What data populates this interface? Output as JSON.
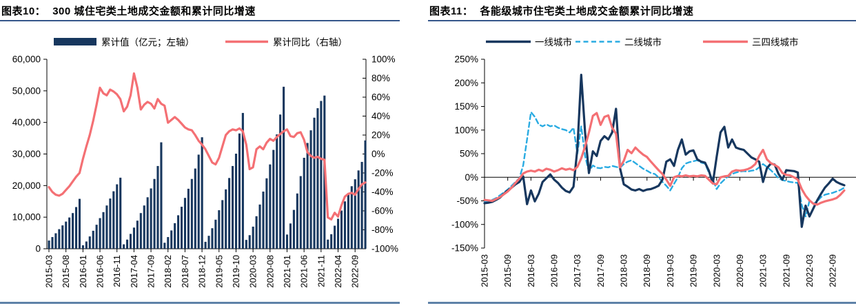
{
  "colors": {
    "navy": "#17375E",
    "salmon": "#F47074",
    "cyan": "#29ABE2",
    "axis": "#000000",
    "title_underline": "#35568A",
    "bottom_rule": "#5E82A8"
  },
  "figures": [
    {
      "id": "fig10",
      "caption_label": "图表10：",
      "caption_title": "300 城住宅类土地成交金额和累计同比增速",
      "legend": [
        {
          "name": "累计值（亿元；左轴）",
          "type": "bar",
          "color_key": "navy"
        },
        {
          "name": "累计同比（右轴）",
          "type": "line",
          "color_key": "salmon"
        }
      ],
      "chart_data": {
        "type": "bar+line",
        "x_freq": "monthly",
        "x_start": "2015-03",
        "x_end": "2022-12",
        "x_tick_labels": [
          "2015-03",
          "2015-08",
          "2016-01",
          "2016-06",
          "2016-11",
          "2017-04",
          "2017-09",
          "2018-02",
          "2018-07",
          "2018-12",
          "2019-05",
          "2019-10",
          "2020-03",
          "2020-08",
          "2021-01",
          "2021-06",
          "2021-11",
          "2022-04",
          "2022-09"
        ],
        "x_tick_every_n_months": 5,
        "left_axis": {
          "min": 0,
          "max": 60000,
          "tick_labels": [
            "60,000",
            "50,000",
            "40,000",
            "30,000",
            "20,000",
            "10,000",
            "0"
          ]
        },
        "right_axis": {
          "min": -100,
          "max": 100,
          "tick_labels": [
            "100%",
            "80%",
            "60%",
            "40%",
            "20%",
            "0%",
            "-20%",
            "-40%",
            "-60%",
            "-80%",
            "-100%"
          ]
        },
        "bar_series": {
          "name": "累计值（亿元；左轴）",
          "values": [
            2600,
            3700,
            4900,
            6200,
            7400,
            8600,
            9900,
            11300,
            13200,
            15800,
            1100,
            2300,
            3900,
            5700,
            7600,
            9700,
            11600,
            13700,
            15900,
            18200,
            20400,
            22500,
            1400,
            2900,
            4700,
            6700,
            8900,
            11300,
            13700,
            16300,
            19100,
            22100,
            26200,
            33700,
            1900,
            3700,
            5800,
            8100,
            10600,
            13300,
            16100,
            19000,
            22100,
            25400,
            29800,
            35300,
            2200,
            4100,
            6500,
            9200,
            12200,
            15400,
            18800,
            22400,
            26200,
            30100,
            36500,
            43000,
            2800,
            4300,
            7000,
            10300,
            14000,
            18100,
            22300,
            26700,
            31300,
            36200,
            42500,
            51300,
            4500,
            8000,
            12300,
            17500,
            23000,
            28800,
            33500,
            37500,
            41500,
            44500,
            46800,
            48500,
            2900,
            4600,
            7300,
            9500,
            12100,
            15000,
            17100,
            19800,
            22000,
            24800,
            27500,
            34300
          ]
        },
        "line_series": {
          "name": "累计同比（右轴）",
          "values_pct": [
            -35,
            -40,
            -43,
            -44,
            -42,
            -38,
            -34,
            -29,
            -24,
            -20,
            -5,
            8,
            20,
            35,
            52,
            70,
            64,
            62,
            68,
            66,
            63,
            58,
            45,
            50,
            62,
            85,
            70,
            47,
            52,
            55,
            53,
            48,
            58,
            53,
            51,
            33,
            36,
            39,
            36,
            32,
            28,
            26,
            25,
            20,
            14,
            10,
            5,
            -2,
            -9,
            -11,
            -4,
            8,
            20,
            24,
            26,
            25,
            27,
            24,
            10,
            -16,
            -14,
            5,
            8,
            5,
            12,
            16,
            14,
            18,
            21,
            24,
            26,
            19,
            18,
            22,
            23,
            15,
            2,
            -2,
            -4,
            -3,
            -5,
            -6,
            -67,
            -69,
            -62,
            -66,
            -54,
            -45,
            -42,
            -41,
            -43,
            -37,
            -32,
            -30
          ]
        }
      }
    },
    {
      "id": "fig11",
      "caption_label": "图表11：",
      "caption_title": "各能级城市住宅类土地成交金额累计同比增速",
      "legend": [
        {
          "name": "一线城市",
          "type": "line",
          "color_key": "navy",
          "dash": false
        },
        {
          "name": "二线城市",
          "type": "line",
          "color_key": "cyan",
          "dash": true
        },
        {
          "name": "三四线城市",
          "type": "line",
          "color_key": "salmon",
          "dash": false
        }
      ],
      "chart_data": {
        "type": "line",
        "x_freq": "monthly",
        "x_start": "2015-03",
        "x_end": "2022-12",
        "x_tick_labels": [
          "2015-03",
          "2015-09",
          "2016-03",
          "2016-09",
          "2017-03",
          "2017-09",
          "2018-03",
          "2018-09",
          "2019-03",
          "2019-09",
          "2020-03",
          "2020-09",
          "2021-03",
          "2021-09",
          "2022-03",
          "2022-09"
        ],
        "x_tick_every_n_months": 6,
        "y_axis": {
          "min": -150,
          "max": 250,
          "tick_labels": [
            "250%",
            "200%",
            "150%",
            "100%",
            "50%",
            "0%",
            "-50%",
            "-100%",
            "-150%"
          ]
        },
        "series": [
          {
            "name": "一线城市",
            "color_key": "navy",
            "dash": false,
            "values_pct": [
              -55,
              -54,
              -52,
              -48,
              -43,
              -35,
              -28,
              -22,
              -15,
              -10,
              2,
              -57,
              -28,
              -51,
              -35,
              -10,
              -2,
              6,
              -5,
              -12,
              -22,
              -29,
              -32,
              -20,
              60,
              217,
              95,
              9,
              55,
              45,
              77,
              87,
              80,
              95,
              145,
              20,
              -15,
              -20,
              -26,
              -28,
              -25,
              -29,
              -26,
              -25,
              -22,
              -18,
              -5,
              33,
              38,
              24,
              58,
              80,
              48,
              55,
              57,
              38,
              33,
              31,
              14,
              -13,
              43,
              95,
              107,
              63,
              80,
              63,
              60,
              58,
              50,
              42,
              38,
              33,
              -10,
              19,
              29,
              27,
              7,
              -5,
              15,
              14,
              13,
              10,
              -105,
              -60,
              -83,
              -66,
              -49,
              -35,
              -22,
              -13,
              -3,
              -10,
              -14,
              -17
            ]
          },
          {
            "name": "二线城市",
            "color_key": "cyan",
            "dash": true,
            "values_pct": [
              -53,
              -51,
              -48,
              -44,
              -38,
              -32,
              -26,
              -18,
              -10,
              -2,
              25,
              80,
              138,
              128,
              112,
              108,
              112,
              108,
              110,
              105,
              102,
              100,
              95,
              105,
              50,
              108,
              45,
              12,
              25,
              20,
              19,
              22,
              21,
              24,
              22,
              20,
              28,
              33,
              36,
              30,
              24,
              18,
              14,
              9,
              7,
              0,
              -10,
              -18,
              -28,
              -14,
              0,
              19,
              29,
              32,
              34,
              36,
              31,
              29,
              10,
              -5,
              -25,
              -13,
              -5,
              2,
              7,
              10,
              12,
              13,
              12,
              14,
              15,
              21,
              28,
              22,
              15,
              7,
              -2,
              -6,
              -8,
              -10,
              -11,
              -12,
              -59,
              -83,
              -50,
              -56,
              -51,
              -42,
              -37,
              -35,
              -33,
              -30,
              -27,
              -22
            ]
          },
          {
            "name": "三四线城市",
            "color_key": "salmon",
            "dash": false,
            "values_pct": [
              -48,
              -49,
              -50,
              -46,
              -42,
              -36,
              -30,
              -22,
              -12,
              -3,
              8,
              12,
              14,
              12,
              16,
              13,
              18,
              16,
              12,
              15,
              19,
              16,
              18,
              15,
              22,
              40,
              65,
              95,
              130,
              136,
              111,
              128,
              131,
              105,
              92,
              21,
              35,
              58,
              51,
              63,
              55,
              48,
              43,
              33,
              24,
              15,
              7,
              -5,
              -18,
              0,
              3,
              2,
              4,
              2,
              3,
              2,
              4,
              3,
              -5,
              -13,
              -15,
              0,
              2,
              3,
              12,
              15,
              14,
              15,
              17,
              21,
              28,
              45,
              58,
              38,
              30,
              26,
              21,
              9,
              5,
              4,
              0,
              -5,
              -25,
              -39,
              -49,
              -56,
              -58,
              -54,
              -51,
              -49,
              -47,
              -44,
              -37,
              -28
            ]
          }
        ]
      }
    }
  ]
}
